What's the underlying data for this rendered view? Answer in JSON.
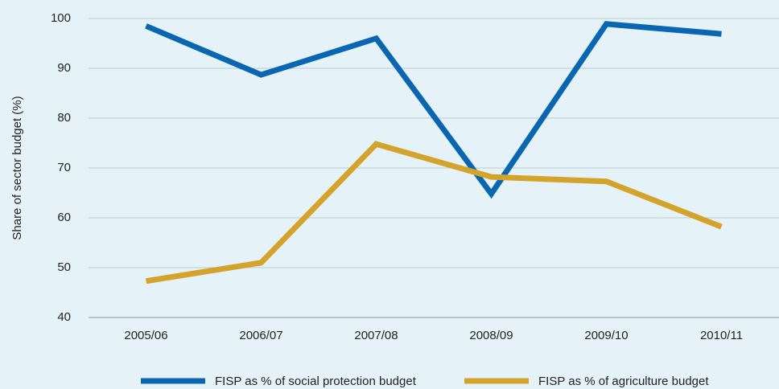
{
  "chart_data": {
    "type": "line",
    "y_label": "Share of sector budget (%)",
    "categories": [
      "2005/06",
      "2006/07",
      "2007/08",
      "2008/09",
      "2009/10",
      "2010/11"
    ],
    "series": [
      {
        "name": "FISP as % of social protection budget",
        "color": "#0a66b0",
        "values": [
          98.5,
          88.7,
          96,
          64.8,
          98.9,
          96.9
        ]
      },
      {
        "name": "FISP as % of agriculture budget",
        "color": "#d3a32b",
        "values": [
          47.3,
          51,
          74.8,
          68.2,
          67.3,
          58.2
        ]
      }
    ],
    "ylim": [
      40,
      100
    ],
    "yticks": [
      40,
      50,
      60,
      70,
      80,
      90,
      100
    ],
    "grid": true
  }
}
